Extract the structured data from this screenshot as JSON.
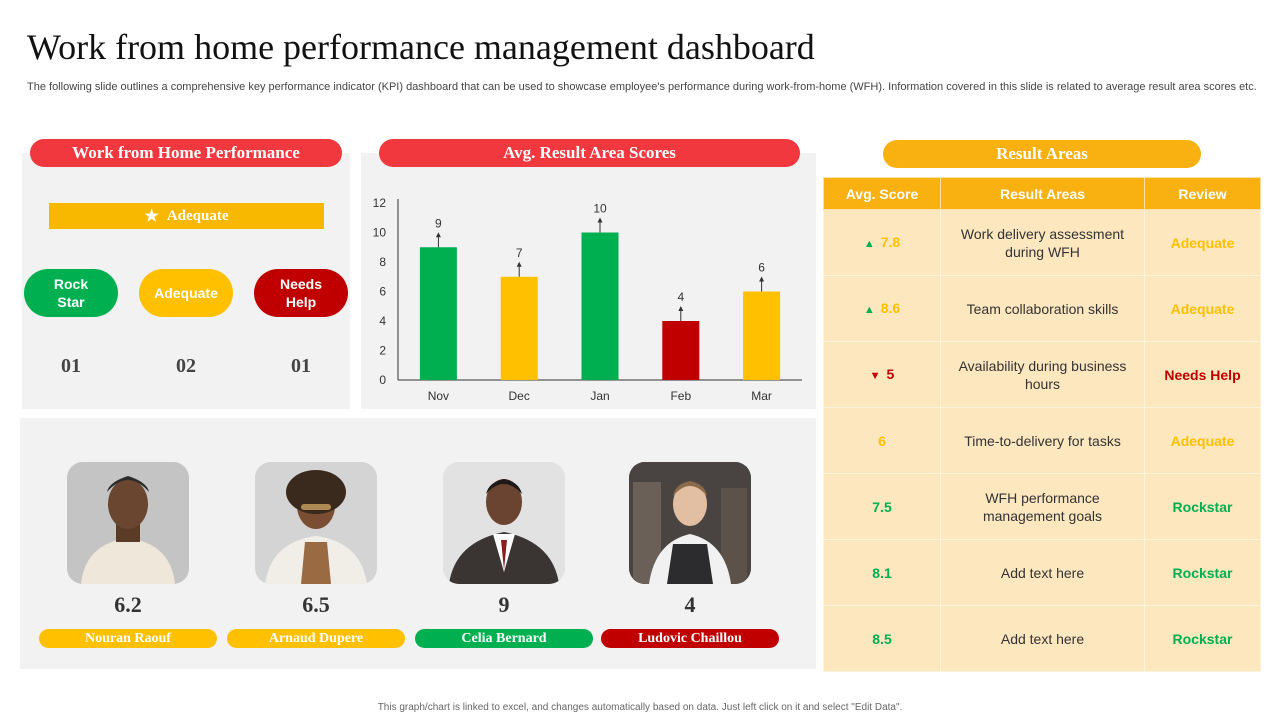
{
  "title": "Work from home performance management dashboard",
  "subtitle": "The following slide outlines a comprehensive key performance indicator (KPI) dashboard that can be used to showcase employee's performance during work-from-home (WFH). Information covered in this slide is related to average result area scores etc.",
  "colors": {
    "red": "#f0383e",
    "orange": "#f9b011",
    "green": "#00b050",
    "yellow": "#ffc000",
    "darkred": "#c00000"
  },
  "wfh": {
    "header": "Work from Home Performance",
    "overall": "Adequate",
    "overall_icon": "star-icon",
    "statuses": [
      {
        "label": "Rock Star",
        "count": "01",
        "color": "#00b050"
      },
      {
        "label": "Adequate",
        "count": "02",
        "color": "#ffc000"
      },
      {
        "label": "Needs Help",
        "count": "01",
        "color": "#c00000"
      }
    ]
  },
  "chart_header": "Avg. Result Area Scores",
  "chart_data": {
    "type": "bar",
    "title": "",
    "categories": [
      "Nov",
      "Dec",
      "Jan",
      "Feb",
      "Mar"
    ],
    "values": [
      9,
      7,
      10,
      4,
      6
    ],
    "bar_colors": [
      "#00b050",
      "#ffc000",
      "#00b050",
      "#c00000",
      "#ffc000"
    ],
    "ylim": [
      0,
      12
    ],
    "yticks": [
      0,
      2,
      4,
      6,
      8,
      10,
      12
    ],
    "xlabel": "",
    "ylabel": "",
    "grid": false,
    "legend": "none"
  },
  "people": [
    {
      "name": "Nouran Raouf",
      "score": "6.2",
      "color": "#ffc000"
    },
    {
      "name": "Arnaud  Dupere",
      "score": "6.5",
      "color": "#ffc000"
    },
    {
      "name": "Celia Bernard",
      "score": "9",
      "color": "#00b050"
    },
    {
      "name": "Ludovic  Chaillou",
      "score": "4",
      "color": "#c00000"
    }
  ],
  "result_areas": {
    "header": "Result Areas",
    "columns": [
      "Avg. Score",
      "Result Areas",
      "Review"
    ],
    "rows": [
      {
        "arrow": "▲",
        "score": "7.8",
        "area": "Work delivery assessment during WFH",
        "review": "Adequate",
        "color": "#ffc000",
        "arrow_color": "#00b050"
      },
      {
        "arrow": "▲",
        "score": "8.6",
        "area": "Team collaboration skills",
        "review": "Adequate",
        "color": "#ffc000",
        "arrow_color": "#00b050"
      },
      {
        "arrow": "▼",
        "score": "5",
        "area": "Availability  during business hours",
        "review": "Needs Help",
        "color": "#c00000",
        "arrow_color": "#c00000"
      },
      {
        "arrow": "",
        "score": "6",
        "area": "Time-to-delivery for tasks",
        "review": "Adequate",
        "color": "#ffc000",
        "arrow_color": ""
      },
      {
        "arrow": "",
        "score": "7.5",
        "area": "WFH performance management goals",
        "review": "Rockstar",
        "color": "#00b050",
        "arrow_color": ""
      },
      {
        "arrow": "",
        "score": "8.1",
        "area": "Add text here",
        "review": "Rockstar",
        "color": "#00b050",
        "arrow_color": ""
      },
      {
        "arrow": "",
        "score": "8.5",
        "area": "Add text here",
        "review": "Rockstar",
        "color": "#00b050",
        "arrow_color": ""
      }
    ]
  },
  "footer": "This graph/chart is linked to excel, and changes automatically based on data. Just left click on it and select \"Edit Data\"."
}
